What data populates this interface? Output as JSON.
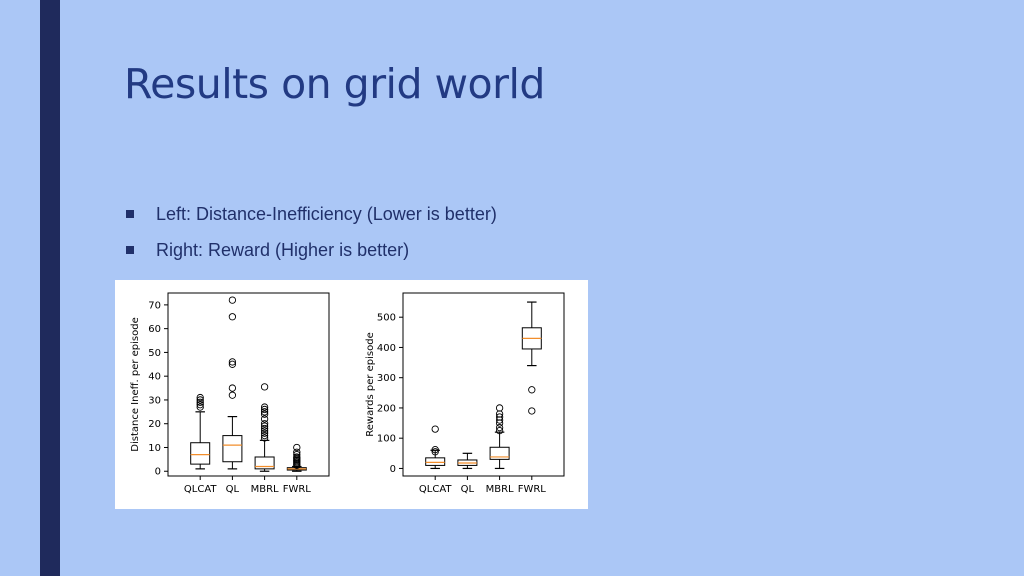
{
  "slide": {
    "title": "Results on grid world",
    "bullets": [
      "Left: Distance-Inefficiency (Lower is better)",
      "Right: Reward (Higher is better)"
    ]
  },
  "colors": {
    "background": "#abc7f6",
    "side_bar": "#1f2a5c",
    "title": "#223a83",
    "median": "#f28e2b"
  },
  "chart_data": [
    {
      "type": "box",
      "title": "",
      "xlabel": "",
      "ylabel": "Distance Ineff. per episode",
      "categories": [
        "QLCAT",
        "QL",
        "MBRL",
        "FWRL"
      ],
      "ylim": [
        -2,
        75
      ],
      "yticks": [
        0,
        10,
        20,
        30,
        40,
        50,
        60,
        70
      ],
      "boxes": [
        {
          "name": "QLCAT",
          "whislo": 1,
          "q1": 3,
          "med": 7,
          "q3": 12,
          "whishi": 25,
          "fliers": [
            27,
            28,
            29,
            30,
            31
          ]
        },
        {
          "name": "QL",
          "whislo": 1,
          "q1": 4,
          "med": 11,
          "q3": 15,
          "whishi": 23,
          "fliers": [
            32,
            35,
            45,
            46,
            65,
            72
          ]
        },
        {
          "name": "MBRL",
          "whislo": 0,
          "q1": 1,
          "med": 2,
          "q3": 6,
          "whishi": 13,
          "fliers": [
            14,
            15,
            16,
            17,
            18,
            19,
            20,
            22,
            24,
            25,
            26,
            27,
            35.5
          ]
        },
        {
          "name": "FWRL",
          "whislo": 0,
          "q1": 0.5,
          "med": 1,
          "q3": 1.5,
          "whishi": 2,
          "fliers": [
            2.5,
            3,
            3.5,
            4,
            4.5,
            5,
            5.5,
            6,
            7,
            8,
            10
          ]
        }
      ]
    },
    {
      "type": "box",
      "title": "",
      "xlabel": "",
      "ylabel": "Rewards per episode",
      "categories": [
        "QLCAT",
        "QL",
        "MBRL",
        "FWRL"
      ],
      "ylim": [
        -25,
        580
      ],
      "yticks": [
        0,
        100,
        200,
        300,
        400,
        500
      ],
      "boxes": [
        {
          "name": "QLCAT",
          "whislo": 0,
          "q1": 10,
          "med": 20,
          "q3": 35,
          "whishi": 60,
          "fliers": [
            55,
            62,
            130
          ]
        },
        {
          "name": "QL",
          "whislo": 0,
          "q1": 10,
          "med": 18,
          "q3": 28,
          "whishi": 50,
          "fliers": []
        },
        {
          "name": "MBRL",
          "whislo": 0,
          "q1": 30,
          "med": 38,
          "q3": 70,
          "whishi": 120,
          "fliers": [
            125,
            135,
            150,
            160,
            170,
            180,
            200
          ]
        },
        {
          "name": "FWRL",
          "whislo": 340,
          "q1": 395,
          "med": 430,
          "q3": 465,
          "whishi": 550,
          "fliers": [
            260,
            190
          ]
        }
      ]
    }
  ]
}
